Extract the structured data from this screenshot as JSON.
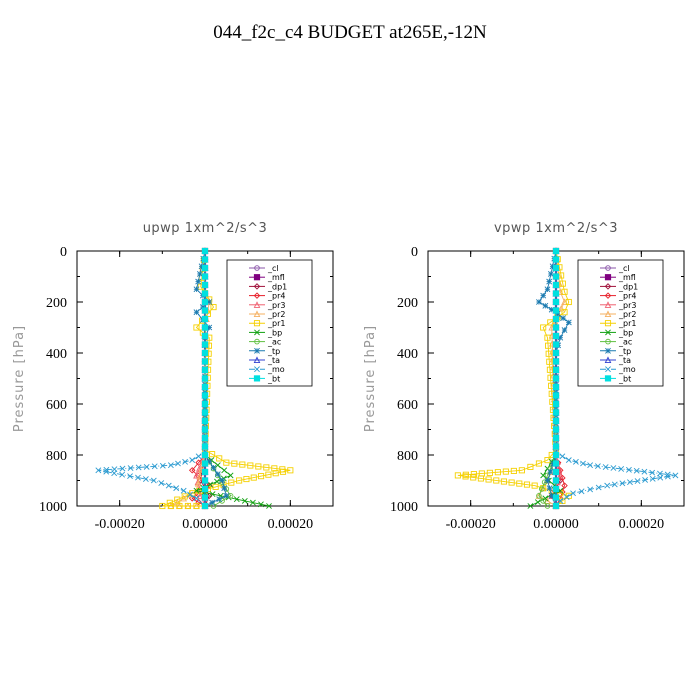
{
  "title": "044_f2c_c4  BUDGET at265E,-12N",
  "legend_labels": [
    "_cl",
    "_mfl",
    "_dp1",
    "_pr4",
    "_pr3",
    "_pr2",
    "_pr1",
    "_bp",
    "_ac",
    "_tp",
    "_ta",
    "_mo",
    "_bt"
  ],
  "colors": {
    "_cl": "#8a55a8",
    "_mfl": "#800080",
    "_dp1": "#a0103a",
    "_pr4": "#e8202a",
    "_pr3": "#f06070",
    "_pr2": "#f5b060",
    "_pr1": "#f5d000",
    "_bp": "#10a010",
    "_ac": "#60c040",
    "_tp": "#1a7ab0",
    "_ta": "#3040d0",
    "_mo": "#2a9ad0",
    "_bt": "#00e0e0"
  },
  "chart_data": [
    {
      "type": "line",
      "title": "upwp   1xm^2/s^3",
      "xlabel": "",
      "ylabel": "Pressure [hPa]",
      "xlim": [
        -0.0003,
        0.0003
      ],
      "ylim": [
        1000,
        0
      ],
      "xticks": [
        -0.0002,
        0.0,
        0.0002
      ],
      "xtick_labels": [
        "-0.00020",
        "0.00000",
        "0.00020"
      ],
      "yticks": [
        0,
        200,
        400,
        600,
        800,
        1000
      ],
      "ytick_labels": [
        "0",
        "200",
        "400",
        "600",
        "800",
        "1000"
      ],
      "legend_position": "top-right",
      "series": [
        {
          "name": "_cl",
          "x": [
            0,
            0,
            0,
            0,
            0,
            0,
            0
          ],
          "y": [
            0,
            200,
            400,
            600,
            800,
            900,
            1000
          ]
        },
        {
          "name": "_mfl",
          "x": [
            0,
            0,
            0,
            0,
            0,
            0,
            0
          ],
          "y": [
            0,
            200,
            400,
            600,
            800,
            900,
            1000
          ]
        },
        {
          "name": "_dp1",
          "x": [
            0,
            0,
            0,
            0,
            0,
            -1e-05,
            1e-05,
            0
          ],
          "y": [
            0,
            200,
            400,
            600,
            800,
            900,
            960,
            1000
          ]
        },
        {
          "name": "_pr4",
          "x": [
            0,
            0,
            0,
            0,
            0,
            -3e-05,
            1e-05,
            -3e-05,
            0
          ],
          "y": [
            0,
            200,
            400,
            600,
            800,
            860,
            920,
            970,
            1000
          ]
        },
        {
          "name": "_pr3",
          "x": [
            0,
            0,
            0,
            0,
            0,
            -2e-05,
            -1e-05,
            0
          ],
          "y": [
            0,
            200,
            400,
            600,
            800,
            880,
            960,
            1000
          ]
        },
        {
          "name": "_pr2",
          "x": [
            0,
            0,
            1e-05,
            0,
            0,
            -2e-05,
            -8e-05,
            0
          ],
          "y": [
            0,
            160,
            200,
            300,
            800,
            940,
            1000,
            1000
          ]
        },
        {
          "name": "_pr1",
          "x": [
            0,
            -1e-05,
            1e-05,
            2e-05,
            -2e-05,
            1e-05,
            0,
            5e-05,
            0.0002,
            8e-05,
            -3e-05,
            -0.0001,
            0
          ],
          "y": [
            0,
            140,
            190,
            220,
            300,
            340,
            780,
            830,
            860,
            900,
            950,
            1000,
            1000
          ]
        },
        {
          "name": "_bp",
          "x": [
            0,
            0,
            0,
            0,
            0,
            6e-05,
            -2e-05,
            0.00015
          ],
          "y": [
            0,
            200,
            400,
            600,
            800,
            880,
            940,
            1000
          ]
        },
        {
          "name": "_ac",
          "x": [
            0,
            0,
            0,
            0,
            0,
            3e-05,
            6e-05,
            2e-05
          ],
          "y": [
            0,
            200,
            400,
            600,
            800,
            880,
            960,
            1000
          ]
        },
        {
          "name": "_tp",
          "x": [
            0,
            -2e-05,
            1e-05,
            -2e-05,
            1e-05,
            0,
            0,
            0,
            4e-05,
            5e-05,
            0
          ],
          "y": [
            0,
            150,
            200,
            240,
            300,
            340,
            400,
            800,
            900,
            960,
            1000
          ]
        },
        {
          "name": "_ta",
          "x": [
            0,
            0,
            0,
            0,
            0,
            0
          ],
          "y": [
            0,
            200,
            400,
            600,
            800,
            1000
          ]
        },
        {
          "name": "_mo",
          "x": [
            0,
            0,
            0,
            0,
            0,
            -3e-05,
            -8e-05,
            -0.00025,
            -0.00012,
            -5e-05,
            -2e-05,
            0
          ],
          "y": [
            0,
            200,
            400,
            600,
            790,
            820,
            840,
            860,
            900,
            940,
            970,
            1000
          ]
        },
        {
          "name": "_bt",
          "x": [
            0,
            0,
            0,
            0,
            0,
            0
          ],
          "y": [
            0,
            200,
            400,
            600,
            800,
            1000
          ]
        }
      ]
    },
    {
      "type": "line",
      "title": "vpwp   1xm^2/s^3",
      "xlabel": "",
      "ylabel": "Pressure [hPa]",
      "xlim": [
        -0.0003,
        0.0003
      ],
      "ylim": [
        1000,
        0
      ],
      "xticks": [
        -0.0002,
        0.0,
        0.0002
      ],
      "xtick_labels": [
        "-0.00020",
        "0.00000",
        "0.00020"
      ],
      "yticks": [
        0,
        200,
        400,
        600,
        800,
        1000
      ],
      "ytick_labels": [
        "0",
        "200",
        "400",
        "600",
        "800",
        "1000"
      ],
      "legend_position": "top-right",
      "series": [
        {
          "name": "_cl",
          "x": [
            0,
            0,
            0,
            0,
            0,
            0,
            0
          ],
          "y": [
            0,
            200,
            400,
            600,
            800,
            900,
            1000
          ]
        },
        {
          "name": "_mfl",
          "x": [
            0,
            0,
            0,
            0,
            0,
            0,
            0
          ],
          "y": [
            0,
            200,
            400,
            600,
            800,
            900,
            1000
          ]
        },
        {
          "name": "_dp1",
          "x": [
            0,
            0,
            0,
            0,
            0,
            1e-05,
            -1e-05,
            0
          ],
          "y": [
            0,
            200,
            400,
            600,
            800,
            900,
            960,
            1000
          ]
        },
        {
          "name": "_pr4",
          "x": [
            0,
            0,
            0,
            0,
            0,
            1e-05,
            2e-05,
            1e-05,
            0
          ],
          "y": [
            0,
            200,
            400,
            600,
            800,
            860,
            920,
            970,
            1000
          ]
        },
        {
          "name": "_pr3",
          "x": [
            0,
            0,
            0,
            0,
            0,
            1e-05,
            -1e-05,
            0
          ],
          "y": [
            0,
            200,
            400,
            600,
            800,
            880,
            960,
            1000
          ]
        },
        {
          "name": "_pr2",
          "x": [
            0,
            1e-05,
            2e-05,
            -1e-05,
            0,
            -2e-05,
            -4e-05,
            0
          ],
          "y": [
            0,
            160,
            200,
            300,
            800,
            900,
            960,
            1000
          ]
        },
        {
          "name": "_pr1",
          "x": [
            0,
            2e-05,
            3e-05,
            2e-05,
            -3e-05,
            -2e-05,
            0,
            -2e-05,
            -8e-05,
            -0.00023,
            -5e-05,
            3e-05,
            0
          ],
          "y": [
            0,
            160,
            200,
            240,
            300,
            340,
            780,
            820,
            860,
            880,
            920,
            960,
            1000
          ]
        },
        {
          "name": "_bp",
          "x": [
            0,
            0,
            0,
            0,
            0,
            -3e-05,
            1e-05,
            -6e-05
          ],
          "y": [
            0,
            200,
            400,
            600,
            800,
            880,
            940,
            1000
          ]
        },
        {
          "name": "_ac",
          "x": [
            0,
            0,
            0,
            0,
            0,
            -2e-05,
            -4e-05,
            -2e-05
          ],
          "y": [
            0,
            200,
            400,
            600,
            800,
            880,
            960,
            1000
          ]
        },
        {
          "name": "_tp",
          "x": [
            0,
            -2e-05,
            -4e-05,
            -1e-05,
            3e-05,
            1e-05,
            0,
            0,
            -2e-05,
            -1e-05,
            0
          ],
          "y": [
            0,
            150,
            200,
            230,
            280,
            340,
            400,
            800,
            900,
            960,
            1000
          ]
        },
        {
          "name": "_ta",
          "x": [
            0,
            0,
            0,
            0,
            0,
            0
          ],
          "y": [
            0,
            200,
            400,
            600,
            800,
            1000
          ]
        },
        {
          "name": "_mo",
          "x": [
            0,
            0,
            0,
            0,
            0,
            3e-05,
            8e-05,
            0.00028,
            0.00012,
            4e-05,
            1e-05,
            0
          ],
          "y": [
            0,
            200,
            400,
            600,
            790,
            820,
            840,
            880,
            920,
            950,
            980,
            1000
          ]
        },
        {
          "name": "_bt",
          "x": [
            0,
            0,
            0,
            0,
            0,
            0
          ],
          "y": [
            0,
            200,
            400,
            600,
            800,
            1000
          ]
        }
      ]
    }
  ]
}
